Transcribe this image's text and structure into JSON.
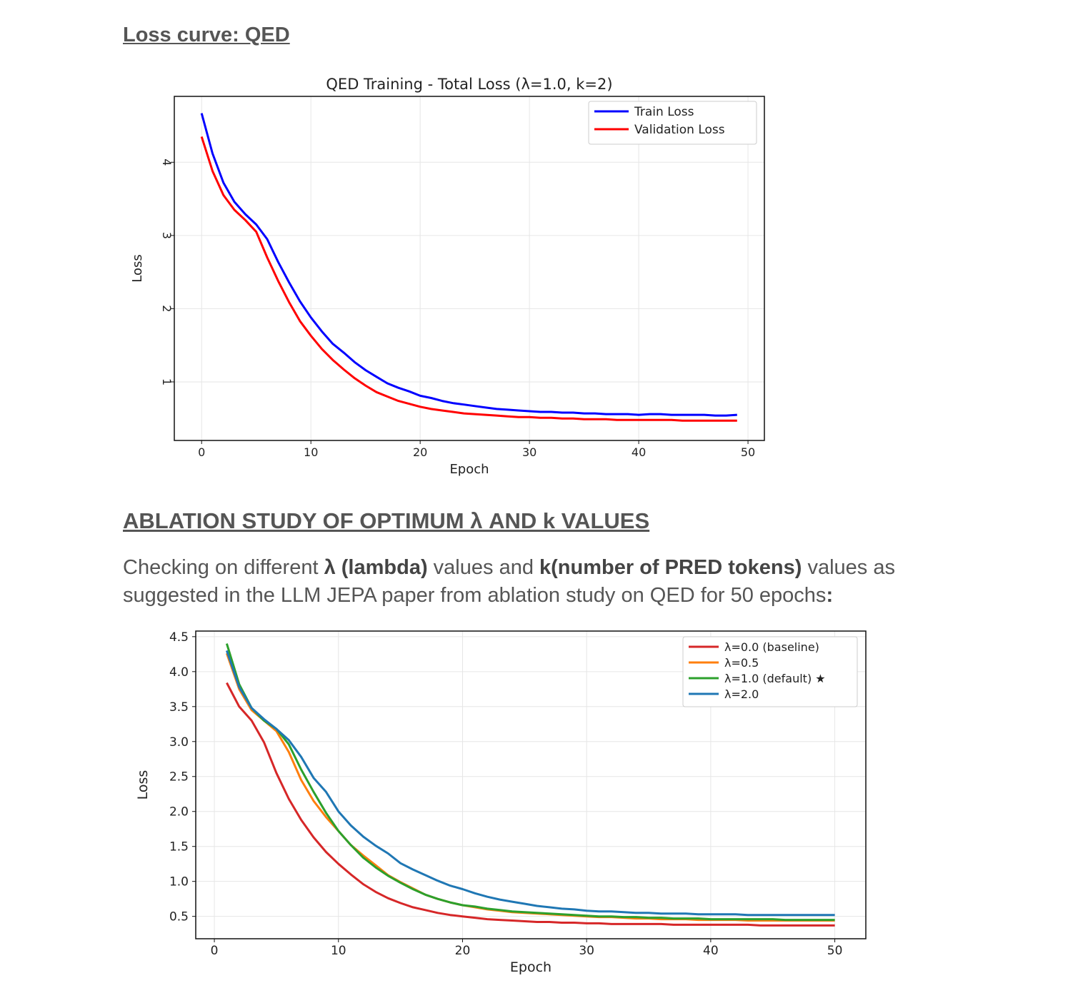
{
  "heading1": "Loss curve: QED",
  "heading2": "ABLATION STUDY OF OPTIMUM λ AND k VALUES",
  "paragraph": {
    "t1": "Checking on different ",
    "b1": "λ (lambda)",
    "t2": " values and ",
    "b2": "k(number of PRED tokens)",
    "t3": " values as suggested in the LLM JEPA paper from ablation study on QED for 50 epochs",
    "b3": ":"
  },
  "chart_data": [
    {
      "type": "line",
      "title": "QED Training - Total Loss (λ=1.0, k=2)",
      "xlabel": "Epoch",
      "ylabel": "Loss",
      "xlim": [
        -2.5,
        51.5
      ],
      "ylim": [
        0.2,
        4.9
      ],
      "xticks": [
        0,
        10,
        20,
        30,
        40,
        50
      ],
      "yticks": [
        1,
        2,
        3,
        4
      ],
      "grid": true,
      "legend": "top-right",
      "x": [
        0,
        1,
        2,
        3,
        4,
        5,
        6,
        7,
        8,
        9,
        10,
        11,
        12,
        13,
        14,
        15,
        16,
        17,
        18,
        19,
        20,
        21,
        22,
        23,
        24,
        25,
        26,
        27,
        28,
        29,
        30,
        31,
        32,
        33,
        34,
        35,
        36,
        37,
        38,
        39,
        40,
        41,
        42,
        43,
        44,
        45,
        46,
        47,
        48,
        49
      ],
      "series": [
        {
          "name": "Train Loss",
          "color": "#0000ff",
          "values": [
            4.67,
            4.12,
            3.72,
            3.46,
            3.29,
            3.15,
            2.95,
            2.64,
            2.36,
            2.1,
            1.88,
            1.69,
            1.52,
            1.4,
            1.27,
            1.16,
            1.07,
            0.98,
            0.92,
            0.87,
            0.81,
            0.78,
            0.74,
            0.71,
            0.69,
            0.67,
            0.65,
            0.63,
            0.62,
            0.61,
            0.6,
            0.59,
            0.59,
            0.58,
            0.58,
            0.57,
            0.57,
            0.56,
            0.56,
            0.56,
            0.55,
            0.56,
            0.56,
            0.55,
            0.55,
            0.55,
            0.55,
            0.54,
            0.54,
            0.55
          ]
        },
        {
          "name": "Validation Loss",
          "color": "#ff0000",
          "values": [
            4.35,
            3.88,
            3.55,
            3.35,
            3.21,
            3.05,
            2.7,
            2.38,
            2.09,
            1.83,
            1.63,
            1.45,
            1.3,
            1.17,
            1.05,
            0.95,
            0.86,
            0.8,
            0.74,
            0.7,
            0.66,
            0.63,
            0.61,
            0.59,
            0.57,
            0.56,
            0.55,
            0.54,
            0.53,
            0.52,
            0.52,
            0.51,
            0.51,
            0.5,
            0.5,
            0.49,
            0.49,
            0.49,
            0.48,
            0.48,
            0.48,
            0.48,
            0.48,
            0.48,
            0.47,
            0.47,
            0.47,
            0.47,
            0.47,
            0.47
          ]
        }
      ]
    },
    {
      "type": "line",
      "title": "",
      "xlabel": "Epoch",
      "ylabel": "Loss",
      "xlim": [
        -1.5,
        52.5
      ],
      "ylim": [
        0.18,
        4.58
      ],
      "xticks": [
        0,
        10,
        20,
        30,
        40,
        50
      ],
      "yticks": [
        "0.5",
        "1.0",
        "1.5",
        "2.0",
        "2.5",
        "3.0",
        "3.5",
        "4.0",
        "4.5"
      ],
      "grid": true,
      "legend": "top-right",
      "x": [
        1,
        2,
        3,
        4,
        5,
        6,
        7,
        8,
        9,
        10,
        11,
        12,
        13,
        14,
        15,
        16,
        17,
        18,
        19,
        20,
        21,
        22,
        23,
        24,
        25,
        26,
        27,
        28,
        29,
        30,
        31,
        32,
        33,
        34,
        35,
        36,
        37,
        38,
        39,
        40,
        41,
        42,
        43,
        44,
        45,
        46,
        47,
        48,
        49,
        50
      ],
      "series": [
        {
          "name": "λ=0.0 (baseline)",
          "color": "#d62728",
          "values": [
            3.84,
            3.5,
            3.3,
            2.99,
            2.55,
            2.18,
            1.88,
            1.63,
            1.42,
            1.25,
            1.1,
            0.96,
            0.85,
            0.76,
            0.69,
            0.63,
            0.59,
            0.55,
            0.52,
            0.5,
            0.48,
            0.46,
            0.45,
            0.44,
            0.43,
            0.42,
            0.42,
            0.41,
            0.41,
            0.4,
            0.4,
            0.39,
            0.39,
            0.39,
            0.39,
            0.39,
            0.38,
            0.38,
            0.38,
            0.38,
            0.38,
            0.38,
            0.38,
            0.37,
            0.37,
            0.37,
            0.37,
            0.37,
            0.37,
            0.37
          ]
        },
        {
          "name": "λ=0.5",
          "color": "#ff7f0e",
          "values": [
            4.26,
            3.75,
            3.45,
            3.3,
            3.15,
            2.85,
            2.45,
            2.15,
            1.92,
            1.72,
            1.52,
            1.37,
            1.23,
            1.09,
            0.99,
            0.9,
            0.81,
            0.75,
            0.7,
            0.66,
            0.63,
            0.6,
            0.58,
            0.56,
            0.55,
            0.54,
            0.53,
            0.52,
            0.51,
            0.5,
            0.49,
            0.49,
            0.48,
            0.47,
            0.47,
            0.46,
            0.46,
            0.46,
            0.45,
            0.45,
            0.45,
            0.45,
            0.44,
            0.44,
            0.44,
            0.44,
            0.44,
            0.44,
            0.44,
            0.44
          ]
        },
        {
          "name": "λ=1.0 (default) ★",
          "color": "#2ca02c",
          "values": [
            4.4,
            3.82,
            3.48,
            3.3,
            3.18,
            2.96,
            2.6,
            2.28,
            1.98,
            1.72,
            1.52,
            1.34,
            1.2,
            1.08,
            0.98,
            0.89,
            0.81,
            0.75,
            0.7,
            0.66,
            0.64,
            0.61,
            0.59,
            0.57,
            0.56,
            0.55,
            0.54,
            0.53,
            0.52,
            0.51,
            0.5,
            0.5,
            0.49,
            0.49,
            0.48,
            0.48,
            0.47,
            0.47,
            0.47,
            0.46,
            0.46,
            0.46,
            0.46,
            0.46,
            0.46,
            0.45,
            0.45,
            0.45,
            0.45,
            0.45
          ]
        },
        {
          "name": "λ=2.0",
          "color": "#1f77b4",
          "values": [
            4.3,
            3.78,
            3.48,
            3.32,
            3.18,
            3.02,
            2.78,
            2.48,
            2.28,
            2.0,
            1.8,
            1.64,
            1.51,
            1.4,
            1.26,
            1.17,
            1.09,
            1.01,
            0.94,
            0.89,
            0.83,
            0.78,
            0.74,
            0.71,
            0.68,
            0.65,
            0.63,
            0.61,
            0.6,
            0.58,
            0.57,
            0.57,
            0.56,
            0.55,
            0.55,
            0.54,
            0.54,
            0.54,
            0.53,
            0.53,
            0.53,
            0.53,
            0.52,
            0.52,
            0.52,
            0.52,
            0.52,
            0.52,
            0.52,
            0.52
          ]
        }
      ]
    }
  ]
}
